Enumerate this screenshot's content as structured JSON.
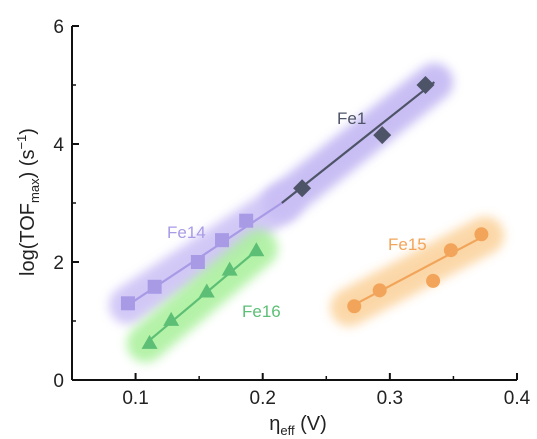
{
  "chart_data": {
    "type": "scatter",
    "xlabel": {
      "base": "η",
      "sub": "eff",
      "unit": " (V)"
    },
    "ylabel": {
      "pre": "log(TOF",
      "sub": "max",
      "post": ") (s",
      "sup": "−1",
      "end": ")"
    },
    "xlim": [
      0.05,
      0.4
    ],
    "ylim": [
      0,
      6
    ],
    "xticks": [
      "0.1",
      "0.2",
      "0.3",
      "0.4"
    ],
    "yticks": [
      "0",
      "2",
      "4",
      "6"
    ],
    "grid": false,
    "legend": "none",
    "series": [
      {
        "name": "Fe1",
        "marker": "diamond",
        "color": "#4e5467",
        "glow": "#bfb3f2",
        "x": [
          0.231,
          0.294,
          0.328
        ],
        "y": [
          3.25,
          4.15,
          5.0
        ],
        "fit": [
          [
            0.215,
            3.0
          ],
          [
            0.335,
            5.05
          ]
        ]
      },
      {
        "name": "Fe14",
        "marker": "square",
        "color": "#a99ae6",
        "glow": "#cbbff5",
        "x": [
          0.094,
          0.115,
          0.149,
          0.168,
          0.187
        ],
        "y": [
          1.3,
          1.58,
          2.0,
          2.37,
          2.7
        ],
        "fit": [
          [
            0.094,
            1.27
          ],
          [
            0.215,
            3.0
          ]
        ]
      },
      {
        "name": "Fe16",
        "marker": "triangle",
        "color": "#5cbf75",
        "glow": "#a8f09a",
        "x": [
          0.111,
          0.128,
          0.156,
          0.174,
          0.195
        ],
        "y": [
          0.63,
          1.02,
          1.5,
          1.87,
          2.2
        ],
        "fit": [
          [
            0.108,
            0.62
          ],
          [
            0.197,
            2.23
          ]
        ]
      },
      {
        "name": "Fe15",
        "marker": "circle",
        "color": "#f2a55a",
        "glow": "#fbd19a",
        "x": [
          0.272,
          0.292,
          0.334,
          0.348,
          0.372
        ],
        "y": [
          1.25,
          1.52,
          1.68,
          2.2,
          2.47
        ],
        "fit": [
          [
            0.268,
            1.23
          ],
          [
            0.375,
            2.45
          ]
        ]
      }
    ]
  }
}
